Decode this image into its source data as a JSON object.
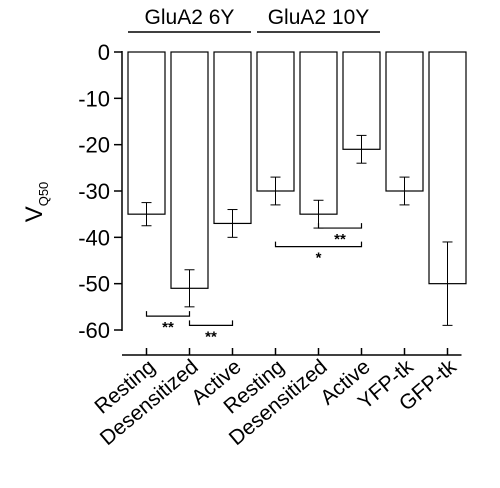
{
  "chart_data": {
    "type": "bar",
    "ylabel_main": "V",
    "ylabel_sub": "Q50",
    "ylim": [
      -60,
      0
    ],
    "yticks": [
      0,
      -10,
      -20,
      -30,
      -40,
      -50,
      -60
    ],
    "groups": [
      {
        "label": "GluA2 6Y",
        "start": 0,
        "end": 2
      },
      {
        "label": "GluA2 10Y",
        "start": 3,
        "end": 5
      }
    ],
    "categories": [
      "Resting",
      "Desensitized",
      "Active",
      "Resting",
      "Desensitized",
      "Active",
      "YFP-tk",
      "GFP-tk"
    ],
    "values": [
      -35,
      -51,
      -37,
      -30,
      -35,
      -21,
      -30,
      -50
    ],
    "errors": [
      2.5,
      4,
      3,
      3,
      3,
      3,
      3,
      9
    ],
    "significance": [
      {
        "from": 0,
        "to": 1,
        "y": -57,
        "label": "**"
      },
      {
        "from": 1,
        "to": 2,
        "y": -59,
        "label": "**"
      },
      {
        "from": 4,
        "to": 5,
        "y": -38,
        "label": "**"
      },
      {
        "from": 3,
        "to": 5,
        "y": -42,
        "label": "*"
      }
    ]
  }
}
